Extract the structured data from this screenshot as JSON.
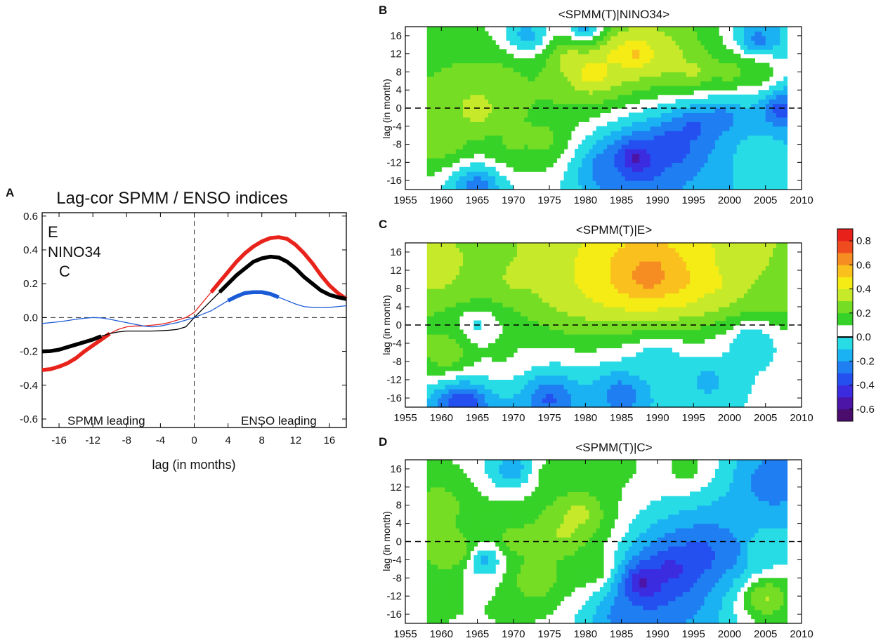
{
  "chart_data": [
    {
      "panel": "A",
      "type": "line",
      "title": "Lag-cor SPMM / ENSO indices",
      "xlabel": "lag (in months)",
      "ylabel": "",
      "xlim": [
        -18,
        18
      ],
      "ylim": [
        -0.65,
        0.62
      ],
      "xticks": [
        -16,
        -12,
        -8,
        -4,
        0,
        4,
        8,
        12,
        16
      ],
      "yticks": [
        -0.6,
        -0.4,
        -0.2,
        0.0,
        0.2,
        0.4,
        0.6
      ],
      "xtick_labels": [
        "-16",
        "-12",
        "-8",
        "-4",
        "0",
        "4",
        "8",
        "12",
        "16"
      ],
      "ytick_labels": [
        "-0.6",
        "-0.4",
        "-0.2",
        "0.0",
        "0.2",
        "0.4",
        "0.6"
      ],
      "annotations": [
        "SPMM leading",
        "ENSO leading"
      ],
      "x": [
        -18,
        -17,
        -16,
        -15,
        -14,
        -13,
        -12,
        -11,
        -10,
        -9,
        -8,
        -7,
        -6,
        -5,
        -4,
        -3,
        -2,
        -1,
        0,
        1,
        2,
        3,
        4,
        5,
        6,
        7,
        8,
        9,
        10,
        11,
        12,
        13,
        14,
        15,
        16,
        17,
        18
      ],
      "series": [
        {
          "name": "E",
          "color": "#e8231b",
          "legend_color": "#e0104b",
          "values": [
            -0.31,
            -0.305,
            -0.29,
            -0.27,
            -0.24,
            -0.2,
            -0.165,
            -0.13,
            -0.095,
            -0.07,
            -0.055,
            -0.05,
            -0.05,
            -0.045,
            -0.04,
            -0.03,
            -0.015,
            0.0,
            0.03,
            0.09,
            0.15,
            0.21,
            0.27,
            0.33,
            0.38,
            0.42,
            0.45,
            0.47,
            0.475,
            0.465,
            0.43,
            0.38,
            0.32,
            0.25,
            0.19,
            0.145,
            0.11
          ],
          "bold_ranges": [
            [
              -18,
              -10
            ],
            [
              2,
              18
            ]
          ]
        },
        {
          "name": "NINO34",
          "color": "#000000",
          "legend_color": "#000000",
          "values": [
            -0.2,
            -0.198,
            -0.19,
            -0.175,
            -0.16,
            -0.145,
            -0.13,
            -0.11,
            -0.095,
            -0.085,
            -0.08,
            -0.08,
            -0.08,
            -0.08,
            -0.078,
            -0.075,
            -0.07,
            -0.055,
            0.0,
            0.05,
            0.1,
            0.15,
            0.2,
            0.25,
            0.29,
            0.33,
            0.35,
            0.36,
            0.355,
            0.33,
            0.29,
            0.24,
            0.2,
            0.16,
            0.135,
            0.12,
            0.11
          ],
          "bold_ranges": [
            [
              -18,
              -11
            ],
            [
              3,
              18
            ]
          ]
        },
        {
          "name": "C",
          "color": "#1c5bd6",
          "legend_color": "#1c5bd6",
          "values": [
            -0.035,
            -0.03,
            -0.025,
            -0.018,
            -0.01,
            -0.004,
            0.0,
            -0.002,
            -0.01,
            -0.02,
            -0.03,
            -0.04,
            -0.05,
            -0.055,
            -0.05,
            -0.04,
            -0.03,
            -0.015,
            0.0,
            0.02,
            0.04,
            0.07,
            0.1,
            0.125,
            0.145,
            0.15,
            0.15,
            0.14,
            0.12,
            0.1,
            0.08,
            0.065,
            0.06,
            0.058,
            0.06,
            0.065,
            0.07
          ],
          "bold_ranges": [
            [
              4,
              10
            ]
          ]
        }
      ]
    },
    {
      "panel": "B",
      "type": "heatmap",
      "title": "<SPMM(T)|NINO34>",
      "ylabel": "lag (in month)",
      "xlim": [
        1955,
        2010
      ],
      "ylim": [
        -18,
        18
      ],
      "xticks": [
        1955,
        1960,
        1965,
        1970,
        1975,
        1980,
        1985,
        1990,
        1995,
        2000,
        2005,
        2010
      ],
      "yticks": [
        -16,
        -12,
        -8,
        -4,
        0,
        4,
        8,
        12,
        16
      ],
      "data_years": [
        1958,
        2008
      ],
      "features": [
        {
          "x": 1965,
          "y": 0,
          "v": 0.4
        },
        {
          "x": 1960,
          "y": 8,
          "v": 0.2
        },
        {
          "x": 1960,
          "y": -7,
          "v": 0.3
        },
        {
          "x": 1970,
          "y": -8,
          "v": 0.22
        },
        {
          "x": 1974,
          "y": -7,
          "v": 0.25
        },
        {
          "x": 1968,
          "y": 6,
          "v": 0.28
        },
        {
          "x": 1978,
          "y": 11,
          "v": 0.4
        },
        {
          "x": 1981,
          "y": 8,
          "v": 0.55
        },
        {
          "x": 1984,
          "y": 12,
          "v": 0.45
        },
        {
          "x": 1987,
          "y": 12,
          "v": 0.6
        },
        {
          "x": 1991,
          "y": 11,
          "v": 0.42
        },
        {
          "x": 1995,
          "y": 8,
          "v": 0.38
        },
        {
          "x": 2000,
          "y": 8,
          "v": 0.3
        },
        {
          "x": 2004,
          "y": 8,
          "v": 0.25
        },
        {
          "x": 1987,
          "y": -11,
          "v": -0.6
        },
        {
          "x": 1992,
          "y": -8,
          "v": -0.45
        },
        {
          "x": 1995,
          "y": -4,
          "v": -0.4
        },
        {
          "x": 1999,
          "y": -2,
          "v": -0.3
        },
        {
          "x": 1983,
          "y": -13,
          "v": -0.3
        },
        {
          "x": 1965,
          "y": -17,
          "v": -0.3
        },
        {
          "x": 1972,
          "y": 16,
          "v": -0.2
        },
        {
          "x": 1980,
          "y": 18,
          "v": -0.25
        },
        {
          "x": 2004,
          "y": 15,
          "v": -0.3
        },
        {
          "x": 2007,
          "y": 0,
          "v": -0.4
        },
        {
          "x": 2004,
          "y": -10,
          "v": 0.0
        }
      ]
    },
    {
      "panel": "C",
      "type": "heatmap",
      "title": "<SPMM(T)|E>",
      "ylabel": "lag (in month)",
      "xlim": [
        1955,
        2010
      ],
      "ylim": [
        -18,
        18
      ],
      "xticks": [
        1955,
        1960,
        1965,
        1970,
        1975,
        1980,
        1985,
        1990,
        1995,
        2000,
        2005,
        2010
      ],
      "yticks": [
        -16,
        -12,
        -8,
        -4,
        0,
        4,
        8,
        12,
        16
      ],
      "data_years": [
        1958,
        2008
      ],
      "features": [
        {
          "x": 1959,
          "y": 12,
          "v": 0.4
        },
        {
          "x": 1963,
          "y": 10,
          "v": 0.3
        },
        {
          "x": 1970,
          "y": 10,
          "v": 0.32
        },
        {
          "x": 1977,
          "y": 9,
          "v": 0.4
        },
        {
          "x": 1982,
          "y": 10,
          "v": 0.48
        },
        {
          "x": 1986,
          "y": 11,
          "v": 0.62
        },
        {
          "x": 1989,
          "y": 11,
          "v": 0.75
        },
        {
          "x": 1993,
          "y": 10,
          "v": 0.55
        },
        {
          "x": 1998,
          "y": 9,
          "v": 0.42
        },
        {
          "x": 2004,
          "y": 8,
          "v": 0.3
        },
        {
          "x": 1961,
          "y": -6,
          "v": 0.32
        },
        {
          "x": 1968,
          "y": -6,
          "v": 0.12
        },
        {
          "x": 1963,
          "y": -17,
          "v": -0.45
        },
        {
          "x": 1975,
          "y": -16,
          "v": -0.35
        },
        {
          "x": 1985,
          "y": -15,
          "v": -0.3
        },
        {
          "x": 1997,
          "y": -12,
          "v": -0.15
        },
        {
          "x": 1990,
          "y": -8,
          "v": -0.12
        },
        {
          "x": 2003,
          "y": -4,
          "v": -0.12
        },
        {
          "x": 1965,
          "y": 0,
          "v": -0.05
        }
      ]
    },
    {
      "panel": "D",
      "type": "heatmap",
      "title": "<SPMM(T)|C>",
      "ylabel": "lag (in month)",
      "xlim": [
        1955,
        2010
      ],
      "ylim": [
        -18,
        18
      ],
      "xticks": [
        1955,
        1960,
        1965,
        1970,
        1975,
        1980,
        1985,
        1990,
        1995,
        2000,
        2005,
        2010
      ],
      "yticks": [
        -16,
        -12,
        -8,
        -4,
        0,
        4,
        8,
        12,
        16
      ],
      "data_years": [
        1958,
        2008
      ],
      "features": [
        {
          "x": 1960,
          "y": 8,
          "v": 0.25
        },
        {
          "x": 1962,
          "y": -2,
          "v": 0.35
        },
        {
          "x": 1966,
          "y": -4,
          "v": -0.2
        },
        {
          "x": 1970,
          "y": 0,
          "v": 0.28
        },
        {
          "x": 1973,
          "y": -8,
          "v": 0.32
        },
        {
          "x": 1977,
          "y": 2,
          "v": 0.35
        },
        {
          "x": 1979,
          "y": 6,
          "v": 0.4
        },
        {
          "x": 1981,
          "y": -6,
          "v": 0.22
        },
        {
          "x": 1975,
          "y": 15,
          "v": 0.15
        },
        {
          "x": 1985,
          "y": 16,
          "v": 0.12
        },
        {
          "x": 1994,
          "y": 16,
          "v": 0.15
        },
        {
          "x": 1970,
          "y": 16,
          "v": -0.2
        },
        {
          "x": 2006,
          "y": 13,
          "v": -0.3
        },
        {
          "x": 1988,
          "y": -9,
          "v": -0.6
        },
        {
          "x": 1992,
          "y": -6,
          "v": -0.48
        },
        {
          "x": 1996,
          "y": -3,
          "v": -0.4
        },
        {
          "x": 2000,
          "y": -2,
          "v": -0.3
        },
        {
          "x": 1986,
          "y": -16,
          "v": -0.3
        },
        {
          "x": 2005,
          "y": -12,
          "v": 0.35
        },
        {
          "x": 2004,
          "y": -2,
          "v": 0.0
        }
      ]
    }
  ],
  "colorbar": {
    "ticks": [
      0.8,
      0.6,
      0.4,
      0.2,
      0.0,
      -0.2,
      -0.4,
      -0.6
    ],
    "tick_labels": [
      "0.8",
      "0.6",
      "0.4",
      "0.2",
      "0.0",
      "-0.2",
      "-0.4",
      "-0.6"
    ],
    "levels": [
      {
        "min": -0.7,
        "max": -0.6,
        "color": "#4a0d6e"
      },
      {
        "min": -0.6,
        "max": -0.5,
        "color": "#4d14a8"
      },
      {
        "min": -0.5,
        "max": -0.4,
        "color": "#3c2ce0"
      },
      {
        "min": -0.4,
        "max": -0.3,
        "color": "#2450f0"
      },
      {
        "min": -0.3,
        "max": -0.2,
        "color": "#1f7ef2"
      },
      {
        "min": -0.2,
        "max": -0.1,
        "color": "#1ab2f2"
      },
      {
        "min": -0.1,
        "max": 0.0,
        "color": "#28dce6"
      },
      {
        "min": 0.0,
        "max": 0.1,
        "color": "#ffffff"
      },
      {
        "min": 0.1,
        "max": 0.2,
        "color": "#37d229"
      },
      {
        "min": 0.2,
        "max": 0.3,
        "color": "#76dd25"
      },
      {
        "min": 0.3,
        "max": 0.4,
        "color": "#c6ea2a"
      },
      {
        "min": 0.4,
        "max": 0.5,
        "color": "#f4ec14"
      },
      {
        "min": 0.5,
        "max": 0.6,
        "color": "#fac01e"
      },
      {
        "min": 0.6,
        "max": 0.7,
        "color": "#f68d22"
      },
      {
        "min": 0.7,
        "max": 0.8,
        "color": "#ef4b1f"
      },
      {
        "min": 0.8,
        "max": 0.9,
        "color": "#e8211a"
      }
    ]
  },
  "panel_labels": [
    "A",
    "B",
    "C",
    "D"
  ]
}
